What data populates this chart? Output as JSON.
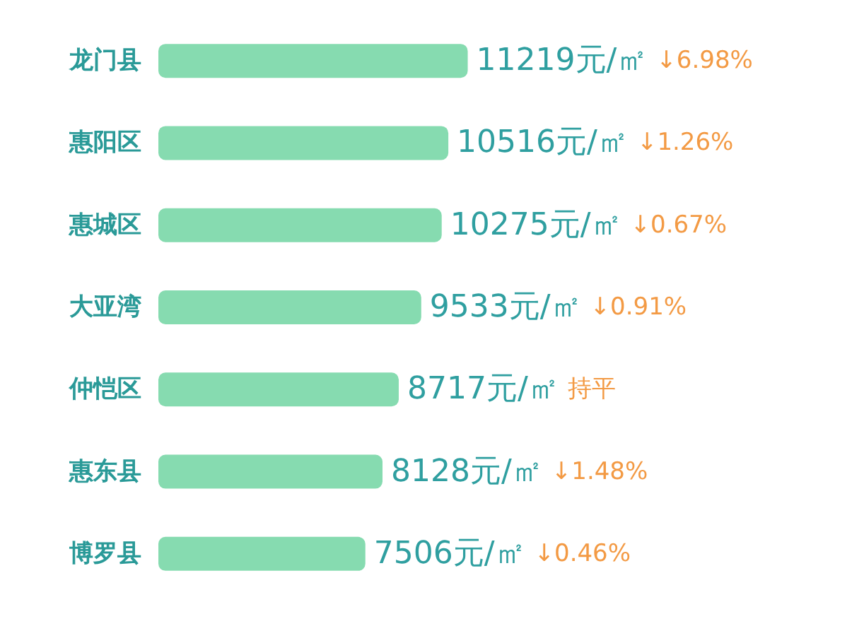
{
  "chart_data": {
    "type": "bar",
    "orientation": "horizontal",
    "categories": [
      "龙门县",
      "惠阳区",
      "惠城区",
      "大亚湾",
      "仲恺区",
      "惠东县",
      "博罗县"
    ],
    "values": [
      11219,
      10516,
      10275,
      9533,
      8717,
      8128,
      7506
    ],
    "value_labels": [
      "11219元/㎡",
      "10516元/㎡",
      "10275元/㎡",
      "9533元/㎡",
      "8717元/㎡",
      "8128元/㎡",
      "7506元/㎡"
    ],
    "color": "#86dbb0",
    "tick_labels": "y",
    "annotations": [
      "↓6.98%",
      "↓1.26%",
      "↓0.67%",
      "↓0.91%",
      "持平",
      "↓1.48%",
      "↓0.46%"
    ]
  }
}
